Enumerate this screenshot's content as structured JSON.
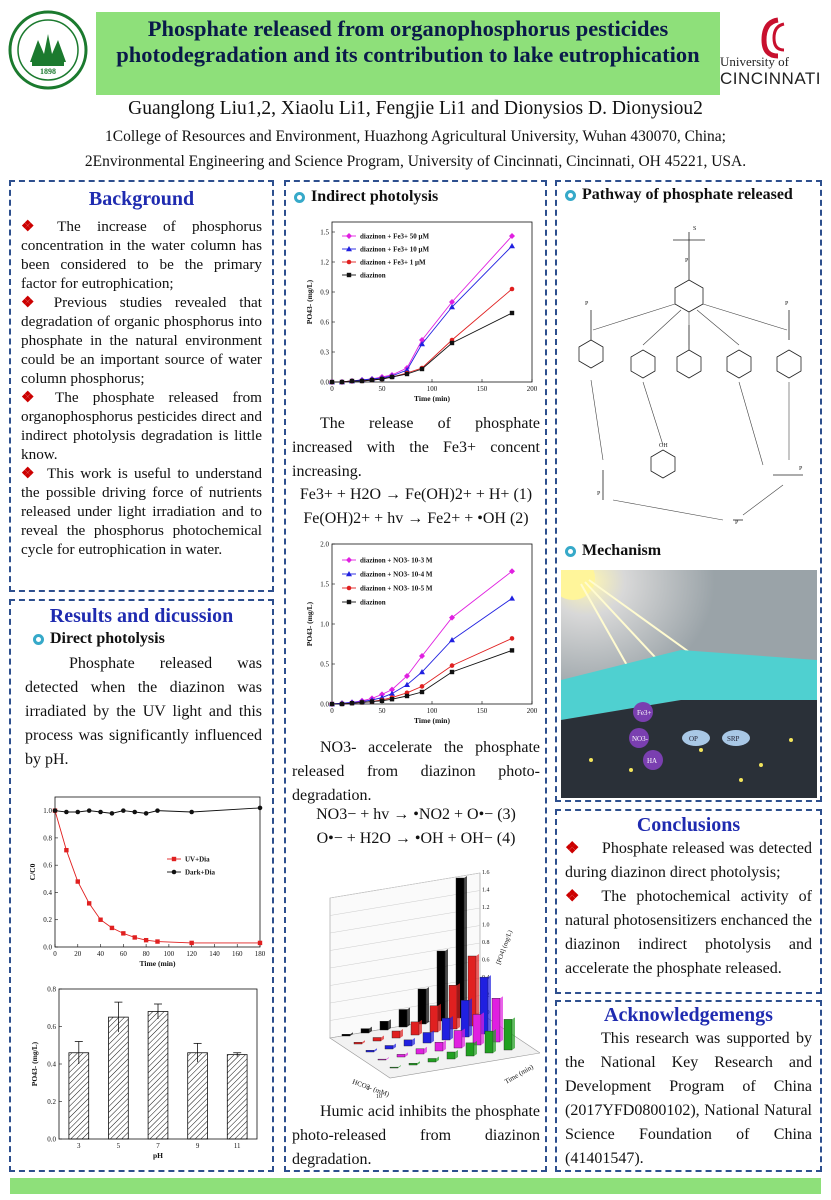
{
  "title": "Phosphate released from organophosphorus pesticides photodegradation and its contribution to lake eutrophication",
  "authors": "Guanglong Liu1,2, Xiaolu Li1, Fengjie Li1 and Dionysios D. Dionysiou2",
  "affiliations": [
    "1College of Resources and Environment, Huazhong Agricultural University, Wuhan 430070, China;",
    "2Environmental Engineering and Science Program, University of Cincinnati, Cincinnati, OH 45221, USA."
  ],
  "logo_left": {
    "year": "1898",
    "caption": "HUAZHONG AGRICULTURAL UNIVERSITY"
  },
  "logo_right": {
    "line1": "University of",
    "line2": "CINCINNATI"
  },
  "background": {
    "heading": "Background",
    "items": [
      "The increase of phosphorus concentration in the water column has been considered to be the primary factor for eutrophication;",
      "Previous studies revealed that degradation of organic phosphorus into phosphate in the natural environment could be an important source of water column phosphorus;",
      "The phosphate released from organophosphorus pesticides direct and indirect photolysis degradation is little know.",
      "This work is useful to understand the possible driving force of nutrients released under light irradiation and to reveal the phosphorus photochemical cycle for eutrophication in water."
    ]
  },
  "results": {
    "heading": "Results and dicussion",
    "direct_title": "Direct photolysis",
    "direct_text": "Phosphate released was detected when the diazinon was irradiated by the UV light and this process was significantly influenced by pH."
  },
  "indirect": {
    "title": "Indirect photolysis",
    "text1": "The release of phosphate increased with the Fe3+ concent increasing.",
    "eq1": "Fe3+ + H2O → Fe(OH)2+ + H+ (1)",
    "eq2": "Fe(OH)2+ + hv → Fe2+ + •OH (2)",
    "text2": "NO3- accelerate the phosphate released from diazinon photo-degradation.",
    "eq3": "NO3− + hv → •NO2 + O•−   (3)",
    "eq4": "O•− + H2O → •OH + OH−  (4)",
    "text3": "Humic acid inhibits the phosphate photo-released from diazinon degradation."
  },
  "pathway": {
    "title": "Pathway of phosphate released"
  },
  "mechanism": {
    "title": "Mechanism",
    "labels": [
      "Fe3+",
      "NO3-",
      "HA",
      "OP",
      "SRP"
    ]
  },
  "conclusions": {
    "heading": "Conclusions",
    "items": [
      "Phosphate released was detected during diazinon direct photolysis;",
      "The photochemical activity of natural photosensitizers enchanced the diazinon indirect photolysis and accelerate the phosphate released."
    ]
  },
  "acknowledgements": {
    "heading": "Acknowledgemengs",
    "text": "This research was supported by the National Key Research and Development Program of China (2017YFD0800102), National Natural Science Foundation of China (41401547)."
  },
  "chart_data": [
    {
      "type": "line",
      "xlabel": "Time (min)",
      "ylabel": "C/C0",
      "xlim": [
        0,
        180
      ],
      "ylim": [
        0,
        1.1
      ],
      "xticks": [
        0,
        20,
        40,
        60,
        80,
        100,
        120,
        140,
        160,
        180
      ],
      "yticks": [
        0.0,
        0.2,
        0.4,
        0.6,
        0.8,
        1.0
      ],
      "legend": "center-right",
      "series": [
        {
          "name": "UV+Dia",
          "color": "#e02020",
          "marker": "square",
          "x": [
            0,
            10,
            20,
            30,
            40,
            50,
            60,
            70,
            80,
            90,
            120,
            180
          ],
          "y": [
            1.0,
            0.71,
            0.48,
            0.32,
            0.2,
            0.14,
            0.1,
            0.07,
            0.05,
            0.04,
            0.03,
            0.03
          ]
        },
        {
          "name": "Dark+Dia",
          "color": "#111111",
          "marker": "circle",
          "x": [
            0,
            10,
            20,
            30,
            40,
            50,
            60,
            70,
            80,
            90,
            120,
            180
          ],
          "y": [
            1.0,
            0.99,
            0.99,
            1.0,
            0.99,
            0.98,
            1.0,
            0.99,
            0.98,
            1.0,
            0.99,
            1.02
          ]
        }
      ]
    },
    {
      "type": "bar",
      "xlabel": "pH",
      "ylabel": "PO43- (mg/L)",
      "categories": [
        "3",
        "5",
        "7",
        "9",
        "11"
      ],
      "values": [
        0.46,
        0.65,
        0.68,
        0.46,
        0.45
      ],
      "errors": [
        0.06,
        0.08,
        0.04,
        0.05,
        0.01
      ],
      "ylim": [
        0,
        0.8
      ],
      "yticks": [
        0.0,
        0.2,
        0.4,
        0.6,
        0.8
      ]
    },
    {
      "type": "line",
      "xlabel": "Time (min)",
      "ylabel": "PO43- (mg/L)",
      "xlim": [
        0,
        200
      ],
      "ylim": [
        0,
        1.6
      ],
      "xticks": [
        0,
        50,
        100,
        150,
        200
      ],
      "yticks": [
        0.0,
        0.3,
        0.6,
        0.9,
        1.2,
        1.5
      ],
      "legend": "top-left",
      "x": [
        0,
        10,
        20,
        30,
        40,
        50,
        60,
        75,
        90,
        120,
        180
      ],
      "series": [
        {
          "name": "diazinon + Fe3+ 50 μM",
          "color": "#e020e0",
          "y": [
            0,
            0.0,
            0.01,
            0.02,
            0.03,
            0.05,
            0.07,
            0.14,
            0.42,
            0.8,
            1.46
          ]
        },
        {
          "name": "diazinon + Fe3+ 10 μM",
          "color": "#2020e0",
          "y": [
            0,
            0.0,
            0.01,
            0.02,
            0.03,
            0.04,
            0.06,
            0.12,
            0.38,
            0.75,
            1.36
          ]
        },
        {
          "name": "diazinon + Fe3+ 1 μM",
          "color": "#e02020",
          "y": [
            0,
            0.0,
            0.01,
            0.01,
            0.02,
            0.03,
            0.05,
            0.09,
            0.14,
            0.42,
            0.93
          ]
        },
        {
          "name": "diazinon",
          "color": "#111111",
          "y": [
            0,
            0.0,
            0.01,
            0.01,
            0.02,
            0.03,
            0.05,
            0.08,
            0.13,
            0.39,
            0.69
          ]
        }
      ]
    },
    {
      "type": "line",
      "xlabel": "Time (min)",
      "ylabel": "PO43- (mg/L)",
      "xlim": [
        0,
        200
      ],
      "ylim": [
        0,
        2.0
      ],
      "xticks": [
        0,
        50,
        100,
        150,
        200
      ],
      "yticks": [
        0.0,
        0.5,
        1.0,
        1.5,
        2.0
      ],
      "legend": "top-left",
      "x": [
        0,
        10,
        20,
        30,
        40,
        50,
        60,
        75,
        90,
        120,
        180
      ],
      "series": [
        {
          "name": "diazinon + NO3- 10-3 M",
          "color": "#e020e0",
          "y": [
            0,
            0.01,
            0.02,
            0.04,
            0.07,
            0.12,
            0.18,
            0.35,
            0.6,
            1.08,
            1.66
          ]
        },
        {
          "name": "diazinon + NO3- 10-4 M",
          "color": "#2020e0",
          "y": [
            0,
            0.01,
            0.02,
            0.03,
            0.05,
            0.08,
            0.13,
            0.24,
            0.4,
            0.8,
            1.32
          ]
        },
        {
          "name": "diazinon + NO3- 10-5 M",
          "color": "#e02020",
          "y": [
            0,
            0.0,
            0.01,
            0.02,
            0.03,
            0.05,
            0.08,
            0.14,
            0.22,
            0.48,
            0.82
          ]
        },
        {
          "name": "diazinon",
          "color": "#111111",
          "y": [
            0,
            0.0,
            0.01,
            0.02,
            0.03,
            0.04,
            0.06,
            0.1,
            0.15,
            0.4,
            0.67
          ]
        }
      ]
    },
    {
      "type": "bar",
      "xlabel": "HCO3- (mM)",
      "ylabel": "[PO4] (mg/L)",
      "zlabel": "Time (min)",
      "yticks": [
        0.0,
        0.2,
        0.4,
        0.6,
        0.8,
        1.0,
        1.2,
        1.4,
        1.6
      ],
      "series": [
        {
          "name": "0",
          "color": "#000000",
          "values": [
            0.02,
            0.05,
            0.1,
            0.2,
            0.4,
            0.8,
            1.6
          ]
        },
        {
          "name": "10",
          "color": "#e02020",
          "values": [
            0.02,
            0.04,
            0.08,
            0.15,
            0.3,
            0.5,
            0.8
          ]
        },
        {
          "name": "20",
          "color": "#2020e0",
          "values": [
            0.02,
            0.04,
            0.07,
            0.12,
            0.25,
            0.42,
            0.65
          ]
        },
        {
          "name": "30",
          "color": "#e020e0",
          "values": [
            0.01,
            0.03,
            0.06,
            0.1,
            0.2,
            0.35,
            0.5
          ]
        },
        {
          "name": "40",
          "color": "#20a020",
          "values": [
            0.01,
            0.02,
            0.04,
            0.08,
            0.15,
            0.25,
            0.35
          ]
        }
      ]
    }
  ]
}
